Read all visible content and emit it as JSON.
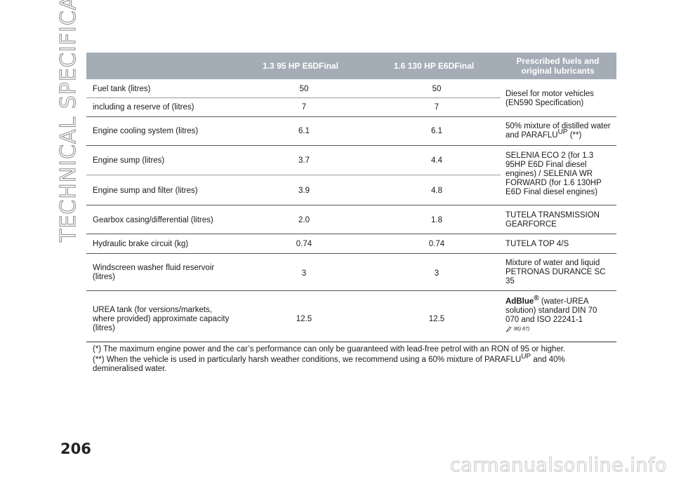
{
  "side_title": "TECHNICAL SPECIFICATIONS",
  "page_number": "206",
  "watermark": "carmanualsonline.info",
  "header": {
    "col1": "1.3 95 HP E6DFinal",
    "col2": "1.6 130 HP E6DFinal",
    "col3_line1": "Prescribed fuels and",
    "col3_line2": "original lubricants"
  },
  "rows": {
    "fuel_tank": {
      "label": "Fuel tank (litres)",
      "v1": "50",
      "v2": "50"
    },
    "reserve": {
      "label": "including a reserve of (litres)",
      "v1": "7",
      "v2": "7"
    },
    "fuel_lub": {
      "line1": "Diesel for motor vehicles",
      "line2": "(EN590 Specification)"
    },
    "cooling": {
      "label": "Engine cooling system (litres)",
      "v1": "6.1",
      "v2": "6.1",
      "lub_line1": "50% mixture of distilled water",
      "lub_line2a": "and PARAFLU",
      "lub_sup": "UP",
      "lub_line2b": "(**)"
    },
    "sump": {
      "label": "Engine sump (litres)",
      "v1": "3.7",
      "v2": "4.4"
    },
    "sump_filter": {
      "label": "Engine sump and filter (litres)",
      "v1": "3.9",
      "v2": "4.8"
    },
    "sump_lub": {
      "l1": "SELENIA ECO 2 (for 1.3",
      "l2": "95HP E6D Final diesel",
      "l3": "engines) / SELENIA WR",
      "l4": "FORWARD (for 1.6 130HP",
      "l5": "E6D Final diesel engines)"
    },
    "gearbox": {
      "label": "Gearbox casing/differential (litres)",
      "v1": "2.0",
      "v2": "1.8",
      "lub_l1": "TUTELA TRANSMISSION",
      "lub_l2": "GEARFORCE"
    },
    "brake": {
      "label": "Hydraulic brake circuit (kg)",
      "v1": "0.74",
      "v2": "0.74",
      "lub": "TUTELA TOP 4/S"
    },
    "washer": {
      "label_l1": "Windscreen washer fluid reservoir",
      "label_l2": "(litres)",
      "v1": "3",
      "v2": "3",
      "lub_l1": "Mixture of water and liquid",
      "lub_l2": "PETRONAS DURANCE SC",
      "lub_l3": "35"
    },
    "urea": {
      "label_l1": "UREA tank (for versions/markets,",
      "label_l2": "where provided) approximate capacity",
      "label_l3": "(litres)",
      "v1": "12.5",
      "v2": "12.5",
      "adblue": "AdBlue",
      "reg": "®",
      "lub_l1b": "(water-UREA",
      "lub_l2": "solution) standard DIN 70",
      "lub_l3": "070 and ISO 22241-1",
      "refs": "86) 87)"
    }
  },
  "footnotes": {
    "note1": "(*) The maximum engine power and the car’s performance can only be guaranteed with lead-free petrol with an RON of 95 or higher.",
    "note2a": "(**) When the vehicle is used in particularly harsh weather conditions, we recommend using a 60% mixture of PARAFLU",
    "note2_sup": "UP",
    "note2b": "and 40%",
    "note2c": "demineralised water."
  }
}
